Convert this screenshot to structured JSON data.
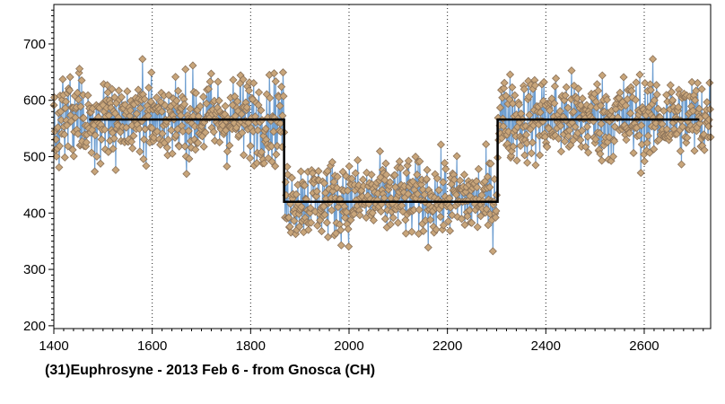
{
  "caption": "(31)Euphrosyne - 2013 Feb 6 - from Gnosca (CH)",
  "chart_data": {
    "type": "scatter",
    "title": "",
    "xlabel": "",
    "ylabel": "",
    "xlim": [
      1400,
      2735
    ],
    "ylim": [
      195,
      770
    ],
    "x_ticks": [
      1400,
      1600,
      1800,
      2000,
      2200,
      2400,
      2600
    ],
    "y_ticks": [
      200,
      300,
      400,
      500,
      600,
      700
    ],
    "x_tick_labels": [
      "1400",
      "1600",
      "1800",
      "2000",
      "2200",
      "2400",
      "2600"
    ],
    "y_tick_labels": [
      "200",
      "300",
      "400",
      "500",
      "600",
      "700"
    ],
    "x_grid": true,
    "y_grid": false,
    "series": [
      {
        "kind": "points-connected",
        "line_color": "#6f9fd1",
        "marker_fill": "#c8a57a",
        "marker_edge": "#8a7158",
        "segments": [
          {
            "x_range": [
              1400,
              1868
            ],
            "mean": 568,
            "spread": 62,
            "count": 440
          },
          {
            "x_range": [
              1870,
              2300
            ],
            "mean": 425,
            "spread": 55,
            "count": 400
          },
          {
            "x_range": [
              2302,
              2735
            ],
            "mean": 568,
            "spread": 62,
            "count": 410
          }
        ]
      },
      {
        "kind": "step-line",
        "line_color": "#000000",
        "points": [
          [
            1472,
            566
          ],
          [
            1868,
            566
          ],
          [
            1868,
            420
          ],
          [
            2302,
            420
          ],
          [
            2302,
            566
          ],
          [
            2712,
            566
          ]
        ]
      }
    ]
  }
}
